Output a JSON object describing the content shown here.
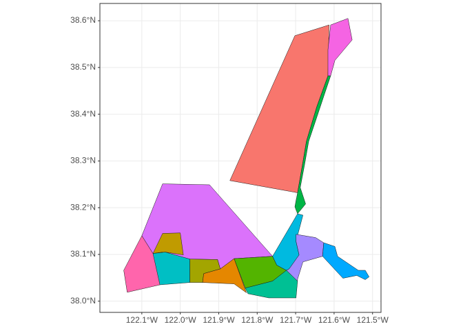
{
  "chart_data": {
    "type": "map",
    "xlim": [
      -122.209,
      -121.478
    ],
    "ylim": [
      37.976,
      38.637
    ],
    "xticks": [
      {
        "value": -122.1,
        "label": "122.1°W"
      },
      {
        "value": -122.0,
        "label": "122.0°W"
      },
      {
        "value": -121.9,
        "label": "121.9°W"
      },
      {
        "value": -121.8,
        "label": "121.8°W"
      },
      {
        "value": -121.7,
        "label": "121.7°W"
      },
      {
        "value": -121.6,
        "label": "121.6°W"
      },
      {
        "value": -121.5,
        "label": "121.5°W"
      }
    ],
    "yticks": [
      {
        "value": 38.0,
        "label": "38.0°N"
      },
      {
        "value": 38.1,
        "label": "38.1°N"
      },
      {
        "value": 38.2,
        "label": "38.2°N"
      },
      {
        "value": 38.3,
        "label": "38.3°N"
      },
      {
        "value": 38.4,
        "label": "38.4°N"
      },
      {
        "value": 38.5,
        "label": "38.5°N"
      },
      {
        "value": 38.6,
        "label": "38.6°N"
      }
    ],
    "grid": true,
    "regions": [
      {
        "color": "#F8766D",
        "coords": [
          [
            -121.702,
            38.568
          ],
          [
            -121.613,
            38.591
          ],
          [
            -121.616,
            38.482
          ],
          [
            -121.645,
            38.416
          ],
          [
            -121.672,
            38.342
          ],
          [
            -121.681,
            38.298
          ],
          [
            -121.695,
            38.232
          ],
          [
            -121.871,
            38.258
          ]
        ]
      },
      {
        "color": "#F564E3",
        "coords": [
          [
            -121.609,
            38.591
          ],
          [
            -121.564,
            38.605
          ],
          [
            -121.553,
            38.559
          ],
          [
            -121.598,
            38.515
          ],
          [
            -121.609,
            38.482
          ],
          [
            -121.616,
            38.482
          ],
          [
            -121.616,
            38.538
          ]
        ]
      },
      {
        "color": "#00B545",
        "coords": [
          [
            -121.616,
            38.482
          ],
          [
            -121.609,
            38.482
          ],
          [
            -121.627,
            38.438
          ],
          [
            -121.648,
            38.386
          ],
          [
            -121.666,
            38.342
          ],
          [
            -121.677,
            38.291
          ],
          [
            -121.688,
            38.243
          ],
          [
            -121.674,
            38.208
          ],
          [
            -121.695,
            38.187
          ],
          [
            -121.702,
            38.202
          ],
          [
            -121.695,
            38.232
          ],
          [
            -121.681,
            38.298
          ],
          [
            -121.672,
            38.342
          ],
          [
            -121.645,
            38.416
          ]
        ]
      },
      {
        "color": "#DB72FB",
        "coords": [
          [
            -122.046,
            38.251
          ],
          [
            -121.924,
            38.249
          ],
          [
            -121.76,
            38.096
          ],
          [
            -121.86,
            38.091
          ],
          [
            -121.896,
            38.069
          ],
          [
            -121.903,
            38.089
          ],
          [
            -121.975,
            38.09
          ],
          [
            -122.046,
            38.105
          ],
          [
            -122.071,
            38.102
          ],
          [
            -122.1,
            38.14
          ]
        ]
      },
      {
        "color": "#C09B00",
        "coords": [
          [
            -122.046,
            38.145
          ],
          [
            -122.0,
            38.146
          ],
          [
            -121.992,
            38.099
          ],
          [
            -122.039,
            38.105
          ],
          [
            -122.071,
            38.102
          ]
        ]
      },
      {
        "color": "#FF65AC",
        "coords": [
          [
            -122.1,
            38.14
          ],
          [
            -122.071,
            38.102
          ],
          [
            -122.046,
            38.105
          ],
          [
            -122.053,
            38.035
          ],
          [
            -122.138,
            38.019
          ],
          [
            -122.147,
            38.066
          ]
        ]
      },
      {
        "color": "#00BFC4",
        "coords": [
          [
            -122.071,
            38.102
          ],
          [
            -122.039,
            38.105
          ],
          [
            -121.975,
            38.09
          ],
          [
            -121.975,
            38.04
          ],
          [
            -122.053,
            38.035
          ]
        ]
      },
      {
        "color": "#A3A500",
        "coords": [
          [
            -121.975,
            38.09
          ],
          [
            -121.903,
            38.089
          ],
          [
            -121.896,
            38.069
          ],
          [
            -121.939,
            38.059
          ],
          [
            -121.942,
            38.04
          ],
          [
            -121.975,
            38.04
          ]
        ]
      },
      {
        "color": "#E58700",
        "coords": [
          [
            -121.939,
            38.059
          ],
          [
            -121.896,
            38.069
          ],
          [
            -121.86,
            38.091
          ],
          [
            -121.828,
            38.018
          ],
          [
            -121.86,
            38.037
          ],
          [
            -121.942,
            38.04
          ]
        ]
      },
      {
        "color": "#53B400",
        "coords": [
          [
            -121.86,
            38.091
          ],
          [
            -121.76,
            38.096
          ],
          [
            -121.749,
            38.077
          ],
          [
            -121.724,
            38.066
          ],
          [
            -121.76,
            38.043
          ],
          [
            -121.831,
            38.028
          ]
        ]
      },
      {
        "color": "#00C094",
        "coords": [
          [
            -121.831,
            38.028
          ],
          [
            -121.76,
            38.043
          ],
          [
            -121.724,
            38.066
          ],
          [
            -121.695,
            38.043
          ],
          [
            -121.699,
            38.007
          ],
          [
            -121.77,
            38.007
          ],
          [
            -121.824,
            38.016
          ]
        ]
      },
      {
        "color": "#00BAE0",
        "coords": [
          [
            -121.695,
            38.187
          ],
          [
            -121.681,
            38.184
          ],
          [
            -121.699,
            38.128
          ],
          [
            -121.691,
            38.099
          ],
          [
            -121.717,
            38.069
          ],
          [
            -121.724,
            38.066
          ],
          [
            -121.749,
            38.077
          ],
          [
            -121.76,
            38.096
          ]
        ]
      },
      {
        "color": "#A58AFF",
        "coords": [
          [
            -121.699,
            38.143
          ],
          [
            -121.648,
            38.136
          ],
          [
            -121.627,
            38.125
          ],
          [
            -121.63,
            38.096
          ],
          [
            -121.681,
            38.084
          ],
          [
            -121.695,
            38.047
          ],
          [
            -121.695,
            38.043
          ],
          [
            -121.724,
            38.066
          ],
          [
            -121.717,
            38.069
          ],
          [
            -121.691,
            38.099
          ],
          [
            -121.699,
            38.128
          ]
        ]
      },
      {
        "color": "#00A9FF",
        "coords": [
          [
            -121.627,
            38.125
          ],
          [
            -121.598,
            38.117
          ],
          [
            -121.591,
            38.096
          ],
          [
            -121.537,
            38.066
          ],
          [
            -121.519,
            38.066
          ],
          [
            -121.509,
            38.052
          ],
          [
            -121.519,
            38.046
          ],
          [
            -121.541,
            38.055
          ],
          [
            -121.577,
            38.049
          ],
          [
            -121.613,
            38.081
          ],
          [
            -121.63,
            38.096
          ]
        ]
      }
    ]
  }
}
